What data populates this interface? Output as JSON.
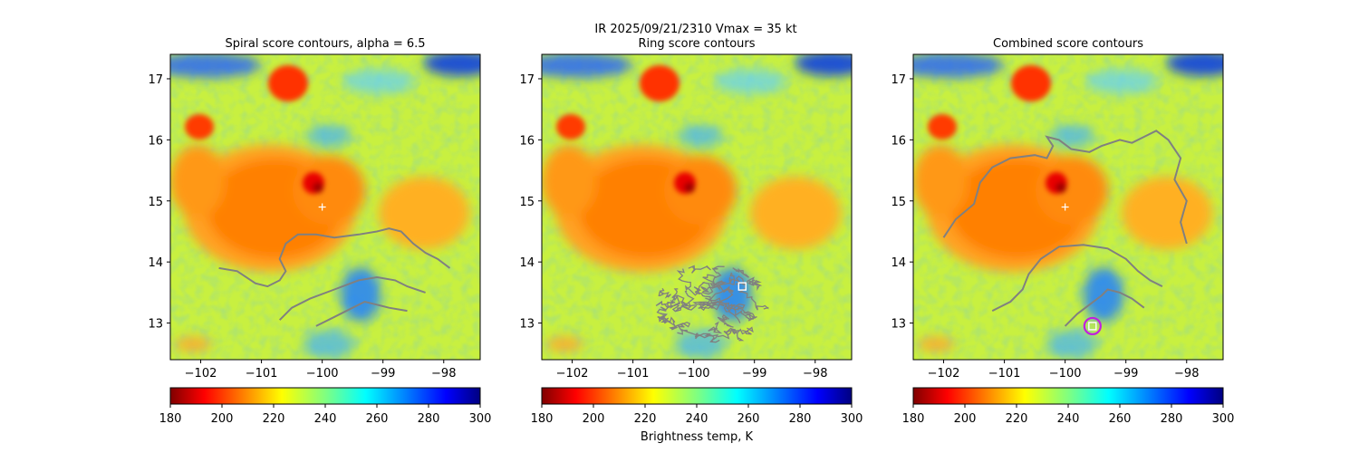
{
  "figure": {
    "suptitle_line1": "IR  2025/09/21/2310    Vmax = 35 kt",
    "colorbar_label": "Brightness temp, K"
  },
  "chart_data": [
    {
      "type": "heatmap",
      "title": "Spiral score contours, alpha =  6.5",
      "xlim": [
        -102.5,
        -97.4
      ],
      "ylim": [
        12.4,
        17.4
      ],
      "x_ticks": [
        -102,
        -101,
        -100,
        -99,
        -98
      ],
      "y_ticks": [
        13,
        14,
        15,
        16,
        17
      ],
      "x_tick_labels": [
        "−102",
        "−101",
        "−100",
        "−99",
        "−98"
      ],
      "y_tick_labels": [
        "13",
        "14",
        "15",
        "16",
        "17"
      ],
      "colormap": "jet_r",
      "colorbar": {
        "range": [
          180,
          300
        ],
        "ticks": [
          180,
          200,
          220,
          240,
          260,
          280,
          300
        ]
      },
      "contour_color": "#808080",
      "contours": [
        [
          [
            -101.7,
            13.9
          ],
          [
            -101.4,
            13.85
          ],
          [
            -101.1,
            13.65
          ],
          [
            -100.9,
            13.6
          ],
          [
            -100.7,
            13.7
          ],
          [
            -100.6,
            13.85
          ],
          [
            -100.7,
            14.05
          ],
          [
            -100.6,
            14.3
          ],
          [
            -100.4,
            14.45
          ],
          [
            -100.1,
            14.45
          ],
          [
            -99.8,
            14.4
          ],
          [
            -99.4,
            14.45
          ],
          [
            -99.1,
            14.5
          ],
          [
            -98.9,
            14.55
          ],
          [
            -98.7,
            14.5
          ],
          [
            -98.5,
            14.3
          ],
          [
            -98.3,
            14.15
          ],
          [
            -98.1,
            14.05
          ],
          [
            -97.9,
            13.9
          ]
        ],
        [
          [
            -100.7,
            13.05
          ],
          [
            -100.5,
            13.25
          ],
          [
            -100.2,
            13.4
          ],
          [
            -99.8,
            13.55
          ],
          [
            -99.4,
            13.7
          ],
          [
            -99.1,
            13.75
          ],
          [
            -98.8,
            13.7
          ],
          [
            -98.6,
            13.6
          ],
          [
            -98.3,
            13.5
          ]
        ],
        [
          [
            -100.1,
            12.95
          ],
          [
            -99.8,
            13.1
          ],
          [
            -99.5,
            13.25
          ],
          [
            -99.3,
            13.35
          ],
          [
            -99.1,
            13.3
          ],
          [
            -98.9,
            13.25
          ],
          [
            -98.6,
            13.2
          ]
        ]
      ],
      "center_marker": {
        "x": -100,
        "y": 14.9,
        "symbol": "+",
        "color": "#ffffff"
      }
    },
    {
      "type": "heatmap",
      "title": "Ring score contours",
      "xlim": [
        -102.5,
        -97.4
      ],
      "ylim": [
        12.4,
        17.4
      ],
      "x_ticks": [
        -102,
        -101,
        -100,
        -99,
        -98
      ],
      "y_ticks": [
        13,
        14,
        15,
        16,
        17
      ],
      "x_tick_labels": [
        "−102",
        "−101",
        "−100",
        "−99",
        "−98"
      ],
      "y_tick_labels": [
        "13",
        "14",
        "15",
        "16",
        "17"
      ],
      "colormap": "jet_r",
      "colorbar": {
        "range": [
          180,
          300
        ],
        "ticks": [
          180,
          200,
          220,
          240,
          260,
          280,
          300
        ]
      },
      "contour_color": "#808080",
      "ring_region": {
        "cx": -99.7,
        "cy": 13.3,
        "rx": 0.95,
        "ry": 0.7
      },
      "contours": [],
      "best_marker": {
        "x": -99.2,
        "y": 13.6,
        "symbol": "square",
        "color": "#ffffff"
      }
    },
    {
      "type": "heatmap",
      "title": "Combined score contours",
      "xlim": [
        -102.5,
        -97.4
      ],
      "ylim": [
        12.4,
        17.4
      ],
      "x_ticks": [
        -102,
        -101,
        -100,
        -99,
        -98
      ],
      "y_ticks": [
        13,
        14,
        15,
        16,
        17
      ],
      "x_tick_labels": [
        "−102",
        "−101",
        "−100",
        "−99",
        "−98"
      ],
      "y_tick_labels": [
        "13",
        "14",
        "15",
        "16",
        "17"
      ],
      "colormap": "jet_r",
      "colorbar": {
        "range": [
          180,
          300
        ],
        "ticks": [
          180,
          200,
          220,
          240,
          260,
          280,
          300
        ]
      },
      "contour_color": "#808080",
      "contours": [
        [
          [
            -102.0,
            14.4
          ],
          [
            -101.8,
            14.7
          ],
          [
            -101.5,
            14.95
          ],
          [
            -101.4,
            15.3
          ],
          [
            -101.2,
            15.55
          ],
          [
            -100.9,
            15.7
          ],
          [
            -100.5,
            15.75
          ],
          [
            -100.3,
            15.7
          ],
          [
            -100.2,
            15.9
          ],
          [
            -100.3,
            16.05
          ],
          [
            -100.1,
            16.0
          ],
          [
            -99.9,
            15.85
          ],
          [
            -99.6,
            15.8
          ],
          [
            -99.4,
            15.9
          ],
          [
            -99.1,
            16.0
          ],
          [
            -98.9,
            15.95
          ],
          [
            -98.7,
            16.05
          ],
          [
            -98.5,
            16.15
          ],
          [
            -98.3,
            16.0
          ],
          [
            -98.1,
            15.7
          ],
          [
            -98.2,
            15.35
          ],
          [
            -98.0,
            15.0
          ],
          [
            -98.1,
            14.65
          ],
          [
            -98.0,
            14.3
          ]
        ],
        [
          [
            -101.2,
            13.2
          ],
          [
            -100.9,
            13.35
          ],
          [
            -100.7,
            13.55
          ],
          [
            -100.6,
            13.8
          ],
          [
            -100.4,
            14.05
          ],
          [
            -100.1,
            14.25
          ],
          [
            -99.7,
            14.28
          ],
          [
            -99.3,
            14.22
          ],
          [
            -99.0,
            14.05
          ],
          [
            -98.8,
            13.85
          ],
          [
            -98.6,
            13.7
          ],
          [
            -98.4,
            13.6
          ]
        ],
        [
          [
            -100.0,
            12.95
          ],
          [
            -99.8,
            13.15
          ],
          [
            -99.6,
            13.3
          ],
          [
            -99.4,
            13.45
          ],
          [
            -99.3,
            13.55
          ],
          [
            -99.1,
            13.5
          ],
          [
            -98.9,
            13.4
          ],
          [
            -98.7,
            13.25
          ]
        ]
      ],
      "center_marker": {
        "x": -100,
        "y": 14.9,
        "symbol": "+",
        "color": "#ffffff"
      },
      "best_marker": {
        "x": -99.55,
        "y": 12.95,
        "symbol": "square",
        "color": "#ffffff"
      },
      "best_circle": {
        "x": -99.55,
        "y": 12.95,
        "color": "#c020e0"
      }
    }
  ]
}
